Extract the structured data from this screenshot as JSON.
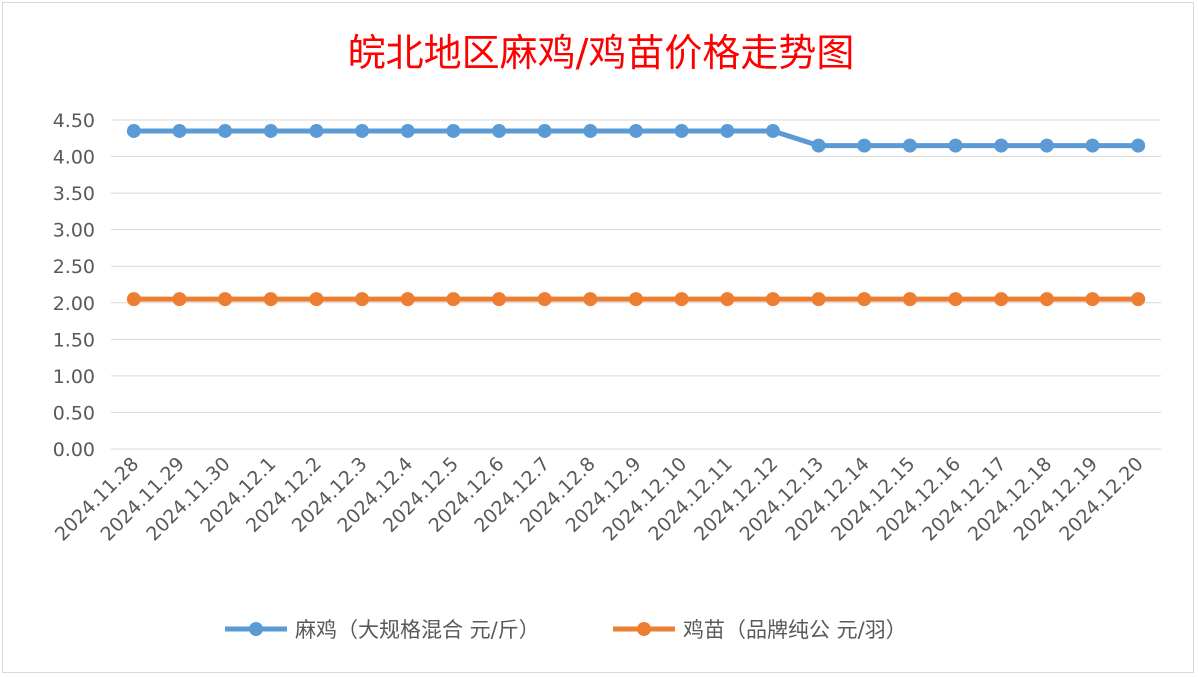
{
  "chart_data": {
    "type": "line",
    "title": "皖北地区麻鸡/鸡苗价格走势图",
    "xlabel": "",
    "ylabel": "",
    "ylim": [
      0,
      4.5
    ],
    "yticks": [
      "0.00",
      "0.50",
      "1.00",
      "1.50",
      "2.00",
      "2.50",
      "3.00",
      "3.50",
      "4.00",
      "4.50"
    ],
    "grid": true,
    "legend_position": "bottom",
    "categories": [
      "2024.11.28",
      "2024.11.29",
      "2024.11.30",
      "2024.12.1",
      "2024.12.2",
      "2024.12.3",
      "2024.12.4",
      "2024.12.5",
      "2024.12.6",
      "2024.12.7",
      "2024.12.8",
      "2024.12.9",
      "2024.12.10",
      "2024.12.11",
      "2024.12.12",
      "2024.12.13",
      "2024.12.14",
      "2024.12.15",
      "2024.12.16",
      "2024.12.17",
      "2024.12.18",
      "2024.12.19",
      "2024.12.20"
    ],
    "series": [
      {
        "name": "麻鸡（大规格混合 元/斤）",
        "color": "#5b9bd5",
        "values": [
          4.35,
          4.35,
          4.35,
          4.35,
          4.35,
          4.35,
          4.35,
          4.35,
          4.35,
          4.35,
          4.35,
          4.35,
          4.35,
          4.35,
          4.35,
          4.15,
          4.15,
          4.15,
          4.15,
          4.15,
          4.15,
          4.15,
          4.15
        ]
      },
      {
        "name": "鸡苗（品牌纯公 元/羽）",
        "color": "#ed7d31",
        "values": [
          2.05,
          2.05,
          2.05,
          2.05,
          2.05,
          2.05,
          2.05,
          2.05,
          2.05,
          2.05,
          2.05,
          2.05,
          2.05,
          2.05,
          2.05,
          2.05,
          2.05,
          2.05,
          2.05,
          2.05,
          2.05,
          2.05,
          2.05
        ]
      }
    ]
  }
}
